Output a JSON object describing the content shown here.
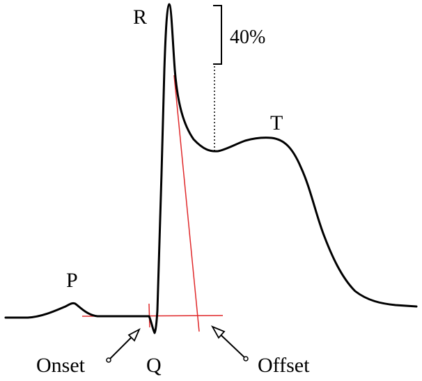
{
  "labels": {
    "r": "R",
    "t": "T",
    "p": "P",
    "q": "Q",
    "onset": "Onset",
    "offset": "Offset",
    "scale": "40%"
  },
  "colors": {
    "trace": "#000000",
    "guide": "#e0282a",
    "text": "#000000"
  }
}
